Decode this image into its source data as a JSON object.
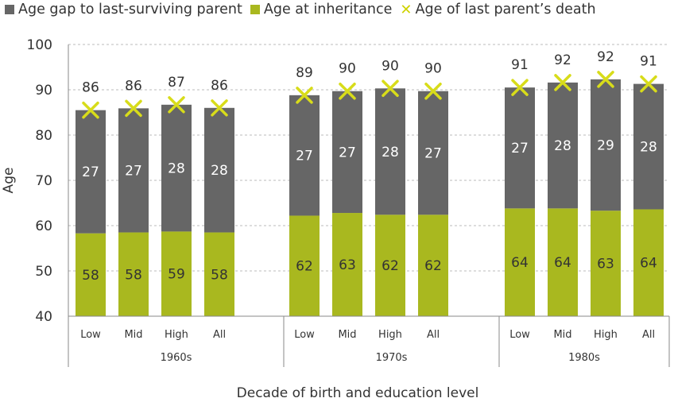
{
  "chart_data": {
    "type": "bar",
    "stacked": true,
    "xlabel": "Decade of birth and education level",
    "ylabel": "Age",
    "ylim": [
      40,
      100
    ],
    "yticks": [
      40,
      50,
      60,
      70,
      80,
      90,
      100
    ],
    "grid": true,
    "colors": {
      "age_at_inheritance": "#a9b81f",
      "age_gap": "#666666",
      "parent_death_marker": "#d8dc1a",
      "text": "#333333",
      "grid": "#bbbbbb",
      "axis": "#888888"
    },
    "legend": {
      "position": "top",
      "items": [
        {
          "key": "age_gap",
          "label": "Age gap to last-surviving parent",
          "marker": "square"
        },
        {
          "key": "age_at_inheritance",
          "label": "Age at inheritance",
          "marker": "square"
        },
        {
          "key": "parent_death",
          "label": "Age of last parent’s death",
          "marker": "x"
        }
      ]
    },
    "groups": [
      {
        "label": "1960s",
        "bars": [
          {
            "category": "Low",
            "inheritance": 58.3,
            "inheritance_label": "58",
            "gap": 27.2,
            "gap_label": "27",
            "death": 85.5,
            "death_label": "86"
          },
          {
            "category": "Mid",
            "inheritance": 58.5,
            "inheritance_label": "58",
            "gap": 27.4,
            "gap_label": "27",
            "death": 85.9,
            "death_label": "86"
          },
          {
            "category": "High",
            "inheritance": 58.7,
            "inheritance_label": "59",
            "gap": 28.0,
            "gap_label": "28",
            "death": 86.7,
            "death_label": "87"
          },
          {
            "category": "All",
            "inheritance": 58.5,
            "inheritance_label": "58",
            "gap": 27.5,
            "gap_label": "28",
            "death": 86.0,
            "death_label": "86"
          }
        ]
      },
      {
        "label": "1970s",
        "bars": [
          {
            "category": "Low",
            "inheritance": 62.2,
            "inheritance_label": "62",
            "gap": 26.6,
            "gap_label": "27",
            "death": 88.8,
            "death_label": "89"
          },
          {
            "category": "Mid",
            "inheritance": 62.8,
            "inheritance_label": "63",
            "gap": 26.9,
            "gap_label": "27",
            "death": 89.7,
            "death_label": "90"
          },
          {
            "category": "High",
            "inheritance": 62.4,
            "inheritance_label": "62",
            "gap": 27.9,
            "gap_label": "28",
            "death": 90.3,
            "death_label": "90"
          },
          {
            "category": "All",
            "inheritance": 62.4,
            "inheritance_label": "62",
            "gap": 27.3,
            "gap_label": "27",
            "death": 89.7,
            "death_label": "90"
          }
        ]
      },
      {
        "label": "1980s",
        "bars": [
          {
            "category": "Low",
            "inheritance": 63.8,
            "inheritance_label": "64",
            "gap": 26.7,
            "gap_label": "27",
            "death": 90.5,
            "death_label": "91"
          },
          {
            "category": "Mid",
            "inheritance": 63.8,
            "inheritance_label": "64",
            "gap": 27.8,
            "gap_label": "28",
            "death": 91.6,
            "death_label": "92"
          },
          {
            "category": "High",
            "inheritance": 63.3,
            "inheritance_label": "63",
            "gap": 29.0,
            "gap_label": "29",
            "death": 92.3,
            "death_label": "92"
          },
          {
            "category": "All",
            "inheritance": 63.6,
            "inheritance_label": "64",
            "gap": 27.7,
            "gap_label": "28",
            "death": 91.3,
            "death_label": "91"
          }
        ]
      }
    ]
  }
}
